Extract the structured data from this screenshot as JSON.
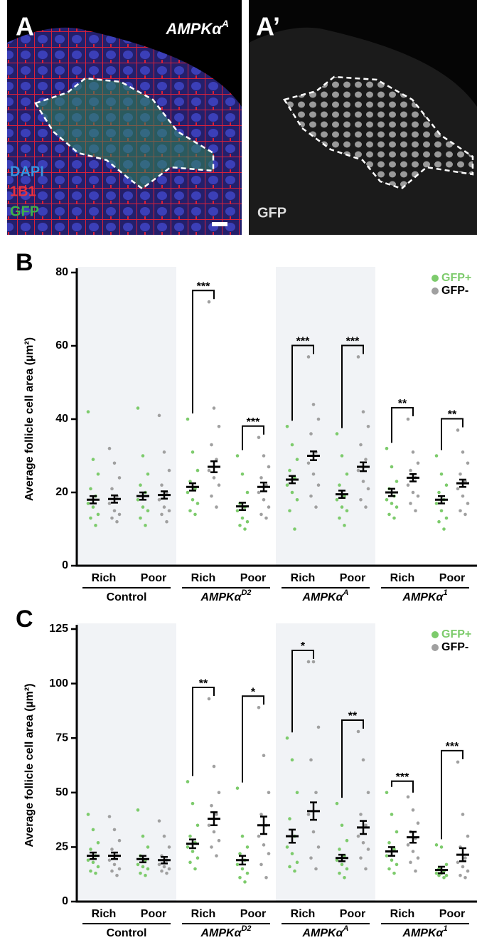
{
  "panels": [
    {
      "label": "A",
      "title": {
        "base": "AMPKα",
        "sup": "A"
      },
      "channels": [
        "DAPI",
        "1B1",
        "GFP"
      ]
    },
    {
      "label": "A’",
      "channels": [
        "GFP"
      ]
    }
  ],
  "chart_data": [
    {
      "type": "strip",
      "panel": "B",
      "ylabel": "Average follicle cell area (µm²)",
      "ylim": [
        0,
        80
      ],
      "yticks": [
        0,
        20,
        40,
        60,
        80
      ],
      "shade": true,
      "legend": "upper right",
      "categories": [
        "Rich",
        "Poor",
        "Rich",
        "Poor",
        "Rich",
        "Poor",
        "Rich",
        "Poor"
      ],
      "groups": [
        {
          "name": "Control"
        },
        {
          "name": "AMPKα",
          "sup": "D2"
        },
        {
          "name": "AMPKα",
          "sup": "A"
        },
        {
          "name": "AMPKα",
          "sup": "1"
        }
      ],
      "significance": [
        null,
        null,
        "***",
        "***",
        "***",
        "***",
        "**",
        "**"
      ],
      "series": [
        {
          "name": "GFP+",
          "color": "#7dcb6c",
          "points": [
            [
              42,
              29,
              25,
              21,
              19,
              17,
              16,
              14,
              13,
              11
            ],
            [
              43,
              30,
              25,
              22,
              20,
              18,
              16,
              15,
              13,
              11
            ],
            [
              40,
              31,
              26,
              23,
              21,
              20,
              18,
              17,
              15,
              14
            ],
            [
              30,
              25,
              20,
              17,
              16,
              15,
              13,
              12,
              11,
              10
            ],
            [
              38,
              33,
              29,
              26,
              24,
              22,
              20,
              18,
              15,
              10
            ],
            [
              36,
              30,
              25,
              22,
              19,
              18,
              16,
              15,
              13,
              11
            ],
            [
              32,
              27,
              23,
              21,
              19,
              18,
              17,
              16,
              14,
              13
            ],
            [
              30,
              25,
              22,
              20,
              18,
              17,
              15,
              13,
              12,
              10
            ]
          ],
          "means": [
            18,
            19,
            21.5,
            16.2,
            23.5,
            19.5,
            20,
            18
          ],
          "errors": [
            1,
            1,
            1,
            1,
            1,
            1,
            1,
            1
          ]
        },
        {
          "name": "GFP-",
          "color": "#a0a0a0",
          "points": [
            [
              32,
              28,
              24,
              21,
              19,
              17,
              15,
              14,
              13,
              12
            ],
            [
              41,
              31,
              26,
              22,
              20,
              18,
              16,
              15,
              14,
              12
            ],
            [
              72,
              43,
              38,
              33,
              29,
              26,
              24,
              22,
              19,
              16
            ],
            [
              35,
              30,
              27,
              24,
              22,
              20,
              18,
              16,
              14,
              13
            ],
            [
              57,
              44,
              40,
              36,
              31,
              28,
              25,
              22,
              19,
              16
            ],
            [
              57,
              42,
              38,
              33,
              29,
              26,
              23,
              21,
              18,
              16
            ],
            [
              40,
              31,
              28,
              26,
              24,
              22,
              20,
              19,
              17,
              15
            ],
            [
              37,
              31,
              28,
              25,
              23,
              21,
              19,
              17,
              15,
              14
            ]
          ],
          "means": [
            18.2,
            19.3,
            27,
            21.5,
            30,
            27,
            24,
            22.5
          ],
          "errors": [
            1,
            1,
            1.5,
            1.2,
            1.2,
            1.2,
            1,
            1
          ]
        }
      ]
    },
    {
      "type": "strip",
      "panel": "C",
      "ylabel": "Average follicle cell area (µm²)",
      "ylim": [
        0,
        125
      ],
      "yticks": [
        0,
        25,
        50,
        75,
        100,
        125
      ],
      "shade": true,
      "legend": "upper right",
      "categories": [
        "Rich",
        "Poor",
        "Rich",
        "Poor",
        "Rich",
        "Poor",
        "Rich",
        "Poor"
      ],
      "groups": [
        {
          "name": "Control"
        },
        {
          "name": "AMPKα",
          "sup": "D2"
        },
        {
          "name": "AMPKα",
          "sup": "A"
        },
        {
          "name": "AMPKα",
          "sup": "1"
        }
      ],
      "significance": [
        null,
        null,
        "**",
        "*",
        "*",
        "**",
        "***",
        "***"
      ],
      "series": [
        {
          "name": "GFP+",
          "color": "#7dcb6c",
          "points": [
            [
              40,
              33,
              27,
              24,
              21,
              19,
              18,
              16,
              14,
              13
            ],
            [
              42,
              30,
              25,
              21,
              19,
              17,
              16,
              15,
              13,
              12
            ],
            [
              55,
              45,
              35,
              30,
              27,
              25,
              23,
              20,
              18,
              15
            ],
            [
              52,
              30,
              25,
              22,
              19,
              17,
              15,
              13,
              11,
              9
            ],
            [
              75,
              65,
              50,
              38,
              30,
              25,
              22,
              18,
              16,
              14
            ],
            [
              45,
              35,
              28,
              24,
              21,
              19,
              17,
              15,
              13,
              11
            ],
            [
              50,
              40,
              32,
              27,
              24,
              21,
              19,
              17,
              15,
              13
            ],
            [
              26,
              25,
              17,
              15,
              14,
              13,
              13,
              12,
              12,
              11
            ]
          ],
          "means": [
            21,
            19.5,
            26.5,
            19,
            30,
            20,
            23,
            14.5
          ],
          "errors": [
            1.5,
            1.5,
            2,
            2,
            3,
            1.5,
            2,
            1.5
          ]
        },
        {
          "name": "GFP-",
          "color": "#a0a0a0",
          "points": [
            [
              39,
              33,
              28,
              24,
              21,
              19,
              17,
              15,
              14,
              12
            ],
            [
              37,
              30,
              25,
              21,
              19,
              17,
              16,
              15,
              14,
              13
            ],
            [
              93,
              62,
              50,
              44,
              40,
              35,
              32,
              28,
              25,
              21
            ],
            [
              89,
              67,
              50,
              40,
              35,
              30,
              26,
              22,
              17,
              11
            ],
            [
              110,
              110,
              80,
              65,
              50,
              40,
              32,
              25,
              20,
              15
            ],
            [
              78,
              65,
              50,
              40,
              35,
              30,
              27,
              24,
              20,
              15
            ],
            [
              48,
              42,
              36,
              32,
              29,
              26,
              23,
              20,
              18,
              14
            ],
            [
              64,
              40,
              30,
              25,
              20,
              18,
              16,
              14,
              12,
              11
            ]
          ],
          "means": [
            21,
            19,
            38,
            35,
            41.5,
            34,
            29.5,
            21.5
          ],
          "errors": [
            1.5,
            1.5,
            3,
            4,
            4,
            3,
            2.5,
            3
          ]
        }
      ]
    }
  ]
}
